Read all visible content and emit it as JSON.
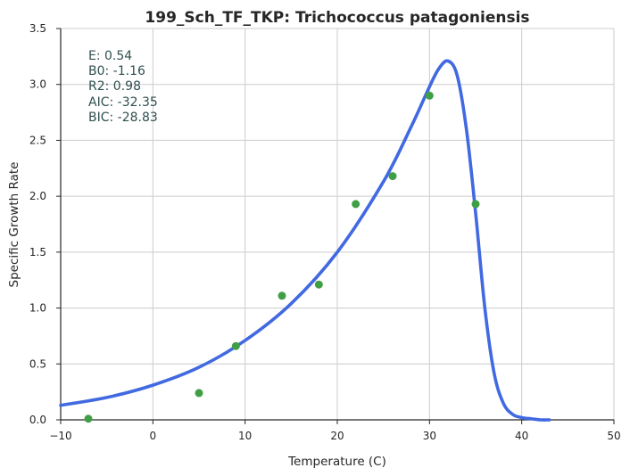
{
  "chart_data": {
    "type": "scatter",
    "title": "199_Sch_TF_TKP: Trichococcus patagoniensis",
    "xlabel": "Temperature (C)",
    "ylabel": "Specific Growth Rate",
    "xlim": [
      -10,
      50
    ],
    "ylim": [
      0,
      3.5
    ],
    "xticks": [
      -10,
      0,
      10,
      20,
      30,
      40,
      50
    ],
    "yticks": [
      0.0,
      0.5,
      1.0,
      1.5,
      2.0,
      2.5,
      3.0,
      3.5
    ],
    "xtick_labels": [
      "−10",
      "0",
      "10",
      "20",
      "30",
      "40",
      "50"
    ],
    "ytick_labels": [
      "0.0",
      "0.5",
      "1.0",
      "1.5",
      "2.0",
      "2.5",
      "3.0",
      "3.5"
    ],
    "grid": true,
    "series": [
      {
        "kind": "scatter",
        "color": "#3f9f45",
        "x": [
          -7,
          5,
          9,
          14,
          18,
          22,
          26,
          30,
          35
        ],
        "y": [
          0.01,
          0.24,
          0.66,
          1.11,
          1.21,
          1.93,
          2.18,
          2.9,
          1.93
        ]
      },
      {
        "kind": "line",
        "color": "#4169e1",
        "x": [
          -10,
          -5,
          0,
          5,
          10,
          15,
          20,
          25,
          28,
          30,
          31,
          32,
          33,
          34,
          35,
          36,
          37,
          38,
          39,
          40,
          41,
          42,
          43
        ],
        "y": [
          0.13,
          0.2,
          0.31,
          0.47,
          0.71,
          1.04,
          1.5,
          2.13,
          2.62,
          2.98,
          3.14,
          3.21,
          3.08,
          2.6,
          1.85,
          1.0,
          0.42,
          0.15,
          0.05,
          0.02,
          0.01,
          0.0,
          0.0
        ]
      }
    ],
    "annotations": [
      "E:  0.54",
      "B0:  -1.16",
      "R2:  0.98",
      "AIC: -32.35",
      "BIC: -28.83"
    ]
  }
}
